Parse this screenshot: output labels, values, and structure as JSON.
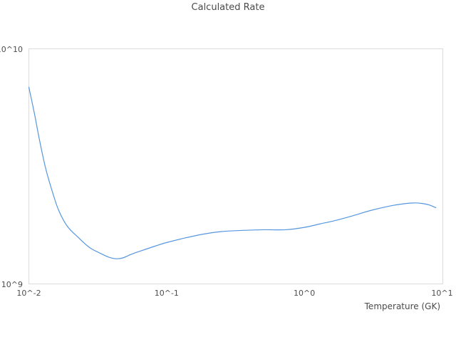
{
  "title": "Calculated Rate",
  "colors": {
    "line": "#5696e0",
    "plot_border": "#dcdcdc",
    "title_text": "#4a4a4a",
    "tick_text": "#4d4d4d",
    "background": "#ffffff"
  },
  "axes": {
    "x": {
      "label": "Temperature (GK)",
      "scale": "log",
      "min": 0.01,
      "max": 10,
      "tick_labels": [
        "10^-2",
        "10^-1",
        "10^0",
        "10^1"
      ],
      "tick_values": [
        0.01,
        0.1,
        1,
        10
      ]
    },
    "y": {
      "label": "",
      "scale": "log",
      "min": 1000000000,
      "max": 10000000000,
      "tick_labels": [
        "10^9",
        "10^10"
      ],
      "tick_values": [
        1000000000,
        10000000000
      ]
    }
  },
  "chart_data": {
    "type": "line",
    "title": "Calculated Rate",
    "xlabel": "Temperature (GK)",
    "ylabel": "",
    "xscale": "log",
    "yscale": "log",
    "xlim": [
      0.01,
      10
    ],
    "ylim": [
      1000000000,
      10000000000
    ],
    "grid": false,
    "legend": false,
    "series_name": "Calculated Rate",
    "x": [
      0.01,
      0.011,
      0.012,
      0.0133,
      0.015,
      0.0165,
      0.019,
      0.023,
      0.0275,
      0.033,
      0.038,
      0.043,
      0.048,
      0.056,
      0.067,
      0.083,
      0.1,
      0.137,
      0.186,
      0.25,
      0.36,
      0.51,
      0.73,
      1.0,
      1.3,
      1.67,
      2.25,
      3.0,
      4.1,
      5.2,
      6.2,
      7.1,
      8.0,
      9.0
    ],
    "y": [
      6870000000.0,
      5270000000.0,
      4040000000.0,
      3070000000.0,
      2410000000.0,
      2050000000.0,
      1760000000.0,
      1570000000.0,
      1430000000.0,
      1350000000.0,
      1300000000.0,
      1280000000.0,
      1290000000.0,
      1340000000.0,
      1390000000.0,
      1450000000.0,
      1500000000.0,
      1570000000.0,
      1630000000.0,
      1670000000.0,
      1690000000.0,
      1700000000.0,
      1700000000.0,
      1740000000.0,
      1800000000.0,
      1860000000.0,
      1950000000.0,
      2050000000.0,
      2140000000.0,
      2190000000.0,
      2210000000.0,
      2200000000.0,
      2170000000.0,
      2110000000.0
    ]
  }
}
